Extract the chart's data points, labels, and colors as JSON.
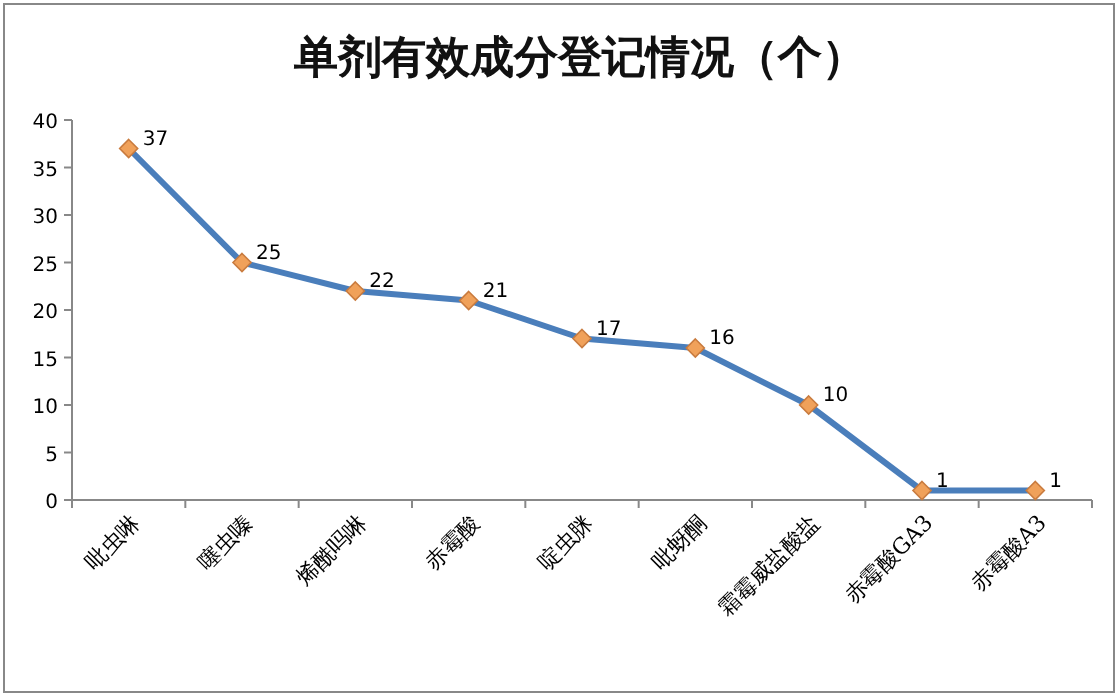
{
  "chart_data": {
    "type": "line",
    "title": "单剂有效成分登记情况（个）",
    "categories": [
      "吡虫啉",
      "噻虫嗪",
      "烯酰吗啉",
      "赤霉酸",
      "啶虫脒",
      "吡蚜酮",
      "霜霉威盐酸盐",
      "赤霉酸GA3",
      "赤霉酸A3"
    ],
    "series": [
      {
        "color": "#4a7ebb",
        "values": [
          37,
          25,
          22,
          21,
          17,
          16,
          10,
          1,
          1
        ]
      }
    ],
    "ylim": [
      0,
      40
    ],
    "yticks": [
      0,
      5,
      10,
      15,
      20,
      25,
      30,
      35,
      40
    ],
    "marker": "diamond",
    "data_labels": true
  }
}
